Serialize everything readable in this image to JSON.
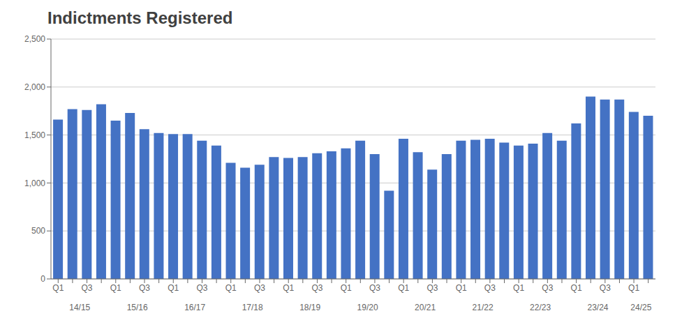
{
  "chart_data": {
    "type": "bar",
    "title": "Indictments Registered",
    "categories": [
      "Q1",
      null,
      "Q3",
      null,
      "Q1",
      null,
      "Q3",
      null,
      "Q1",
      null,
      "Q3",
      null,
      "Q1",
      null,
      "Q3",
      null,
      "Q1",
      null,
      "Q3",
      null,
      "Q1",
      null,
      "Q3",
      null,
      "Q1",
      null,
      "Q3",
      null,
      "Q1",
      null,
      "Q3",
      null,
      "Q1",
      null,
      "Q3",
      null,
      "Q1",
      null,
      "Q3",
      null,
      "Q1",
      null
    ],
    "groups": [
      "14/15",
      "15/16",
      "16/17",
      "17/18",
      "18/19",
      "19/20",
      "20/21",
      "21/22",
      "22/23",
      "23/24",
      "24/25"
    ],
    "group_sizes": [
      4,
      4,
      4,
      4,
      4,
      4,
      4,
      4,
      4,
      4,
      2
    ],
    "values": [
      1660,
      1770,
      1760,
      1820,
      1650,
      1730,
      1560,
      1520,
      1510,
      1510,
      1440,
      1390,
      1210,
      1160,
      1190,
      1270,
      1260,
      1270,
      1310,
      1330,
      1360,
      1440,
      1300,
      920,
      1460,
      1320,
      1140,
      1300,
      1440,
      1450,
      1460,
      1420,
      1390,
      1410,
      1520,
      1440,
      1620,
      1900,
      1870,
      1870,
      1740,
      1700
    ],
    "color": "#4472C4",
    "ylim": [
      0,
      2500
    ],
    "yticks": [
      0,
      500,
      {
        "value": 1000,
        "label": "1,000"
      },
      {
        "value": 1500,
        "label": "1,500"
      },
      {
        "value": 2000,
        "label": "2,000"
      },
      {
        "value": 2500,
        "label": "2,500"
      }
    ],
    "grid": true
  }
}
